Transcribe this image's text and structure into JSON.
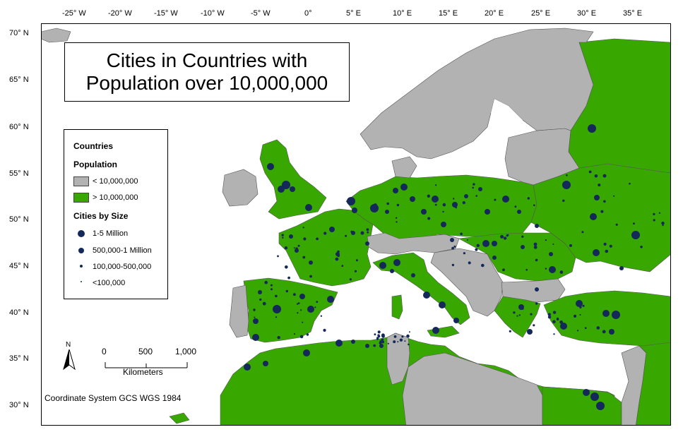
{
  "title": {
    "line1": "Cities in Countries with",
    "line2": "Population over 10,000,000"
  },
  "axes": {
    "longitude_labels": [
      "-25° W",
      "-20° W",
      "-15° W",
      "-10° W",
      "-5° W",
      "0°",
      "5° E",
      "10° E",
      "15° E",
      "20° E",
      "25° E",
      "30° E",
      "35° E"
    ],
    "latitude_labels": [
      "70° N",
      "65° N",
      "60° N",
      "55° N",
      "50° N",
      "45° N",
      "40° N",
      "35° N",
      "30° N"
    ]
  },
  "legend": {
    "countries_heading": "Countries",
    "population_heading": "Population",
    "population_classes": [
      {
        "label": "< 10,000,000",
        "color": "#b2b2b2"
      },
      {
        "label": "> 10,000,000",
        "color": "#38a800"
      }
    ],
    "cities_heading": "Cities by Size",
    "city_classes": [
      {
        "label": "1-5 Million"
      },
      {
        "label": "500,000-1 Million"
      },
      {
        "label": "100,000-500,000"
      },
      {
        "label": "<100,000"
      }
    ]
  },
  "north_arrow": {
    "label": "N"
  },
  "scale_bar": {
    "ticks": [
      "0",
      "500",
      "1,000"
    ],
    "unit": "Kilometers"
  },
  "coordinate_note": "Coordinate System GCS WGS 1984",
  "colors": {
    "water": "#ffffff",
    "large_population": "#38a800",
    "small_population": "#b2b2b2",
    "city": "#14285a",
    "border": "#555555"
  }
}
